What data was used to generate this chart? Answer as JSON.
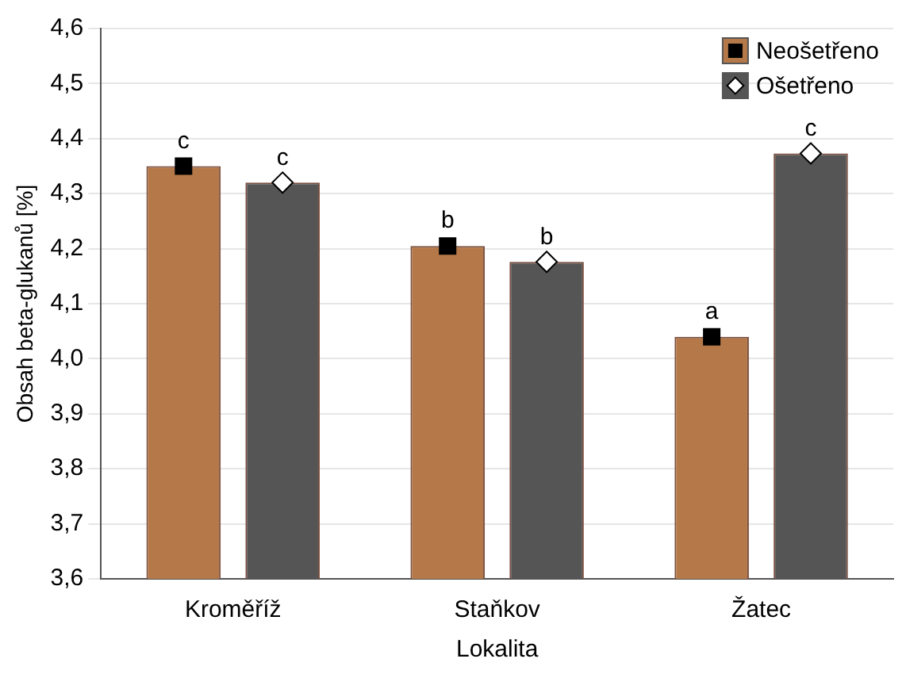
{
  "chart_data": {
    "type": "bar",
    "xlabel": "Lokalita",
    "ylabel": "Obsah beta-glukanů [%]",
    "categories": [
      "Kroměříž",
      "Staňkov",
      "Žatec"
    ],
    "series": [
      {
        "name": "Neošetřeno",
        "color": "#b57848",
        "values": [
          4.35,
          4.205,
          4.04
        ]
      },
      {
        "name": "Ošetřeno",
        "color": "#555555",
        "values": [
          4.32,
          4.176,
          4.373
        ]
      },
      {
        "type": "scatter",
        "marker": "square",
        "color": "#000000",
        "x": [
          "Kroměříž",
          "Staňkov",
          "Žatec"
        ],
        "values": [
          4.35,
          4.205,
          4.04
        ]
      },
      {
        "type": "scatter",
        "marker": "diamond",
        "color": "#ffffff",
        "x": [
          "Kroměříž",
          "Staňkov",
          "Žatec"
        ],
        "values": [
          4.32,
          4.176,
          4.373
        ]
      }
    ],
    "ylim": [
      3.6,
      4.6
    ],
    "yticks": [
      {
        "value": 3.6,
        "label": "3,6"
      },
      {
        "value": 3.7,
        "label": "3,7"
      },
      {
        "value": 3.8,
        "label": "3,8"
      },
      {
        "value": 3.9,
        "label": "3,9"
      },
      {
        "value": 4.0,
        "label": "4,0"
      },
      {
        "value": 4.1,
        "label": "4,1"
      },
      {
        "value": 4.2,
        "label": "4,2"
      },
      {
        "value": 4.3,
        "label": "4,3"
      },
      {
        "value": 4.4,
        "label": "4,4"
      },
      {
        "value": 4.5,
        "label": "4,5"
      },
      {
        "value": 4.6,
        "label": "4,6"
      }
    ],
    "grid": "y",
    "legend": "top right",
    "annotations": [
      "c",
      "c",
      "b",
      "b",
      "a",
      "c"
    ]
  }
}
